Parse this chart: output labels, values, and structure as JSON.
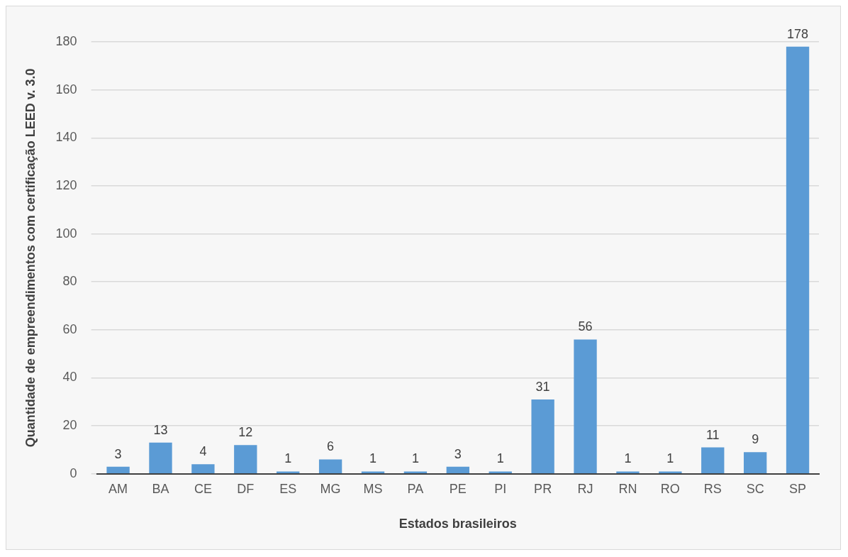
{
  "chart_data": {
    "type": "bar",
    "xlabel": "Estados brasileiros",
    "ylabel": "Quantidade de empreendimentos com certificação LEED v. 3.0",
    "categories": [
      "AM",
      "BA",
      "CE",
      "DF",
      "ES",
      "MG",
      "MS",
      "PA",
      "PE",
      "PI",
      "PR",
      "RJ",
      "RN",
      "RO",
      "RS",
      "SC",
      "SP"
    ],
    "values": [
      3,
      13,
      4,
      12,
      1,
      6,
      1,
      1,
      3,
      1,
      31,
      56,
      1,
      1,
      11,
      9,
      178
    ],
    "color": "#5b9bd5",
    "ylim": [
      0,
      180
    ],
    "yticks": [
      0,
      20,
      40,
      60,
      80,
      100,
      120,
      140,
      160,
      180
    ],
    "grid": "y",
    "data_labels": true,
    "legend": false
  }
}
